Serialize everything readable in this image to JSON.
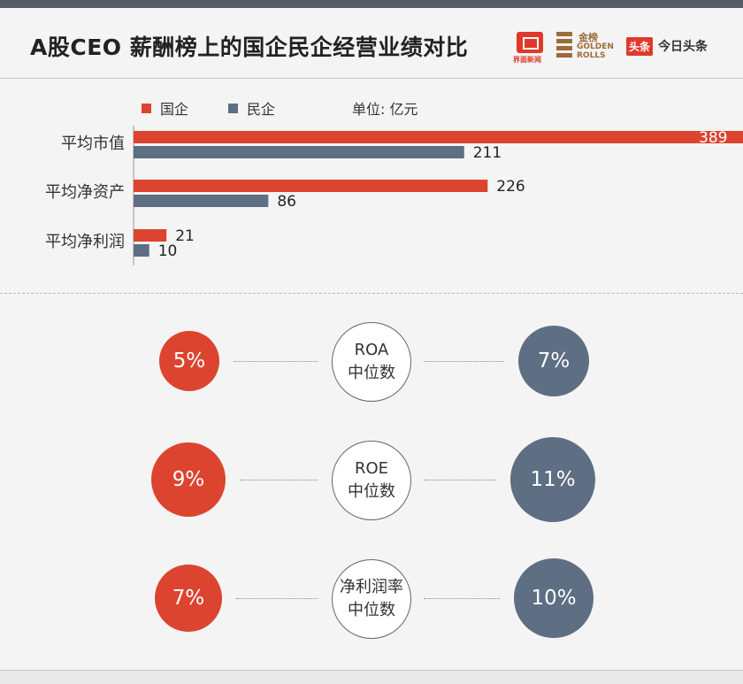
{
  "title": "A股CEO 薪酬榜上的国企民企经营业绩对比",
  "logos": {
    "jiemian": "界面新闻",
    "golden_top": "金榜",
    "golden_1": "GOLDEN",
    "golden_2": "ROLLS",
    "toutiao_box": "头条",
    "toutiao_text": "今日头条"
  },
  "legend": {
    "soe": "国企",
    "private": "民企",
    "unit": "单位: 亿元"
  },
  "colors": {
    "soe": "#dc4430",
    "private": "#5e6e83",
    "title": "#222222"
  },
  "chart_data": {
    "type": "bar",
    "orientation": "horizontal",
    "categories": [
      "平均市值",
      "平均净资产",
      "平均净利润"
    ],
    "series": [
      {
        "name": "国企",
        "values": [
          389,
          226,
          21
        ]
      },
      {
        "name": "民企",
        "values": [
          211,
          86,
          10
        ]
      }
    ],
    "unit": "单位: 亿元"
  },
  "metrics": [
    {
      "label_line1": "ROA",
      "label_line2": "中位数",
      "soe": "5%",
      "private": "7%"
    },
    {
      "label_line1": "ROE",
      "label_line2": "中位数",
      "soe": "9%",
      "private": "11%"
    },
    {
      "label_line1": "净利润率",
      "label_line2": "中位数",
      "soe": "7%",
      "private": "10%"
    }
  ]
}
